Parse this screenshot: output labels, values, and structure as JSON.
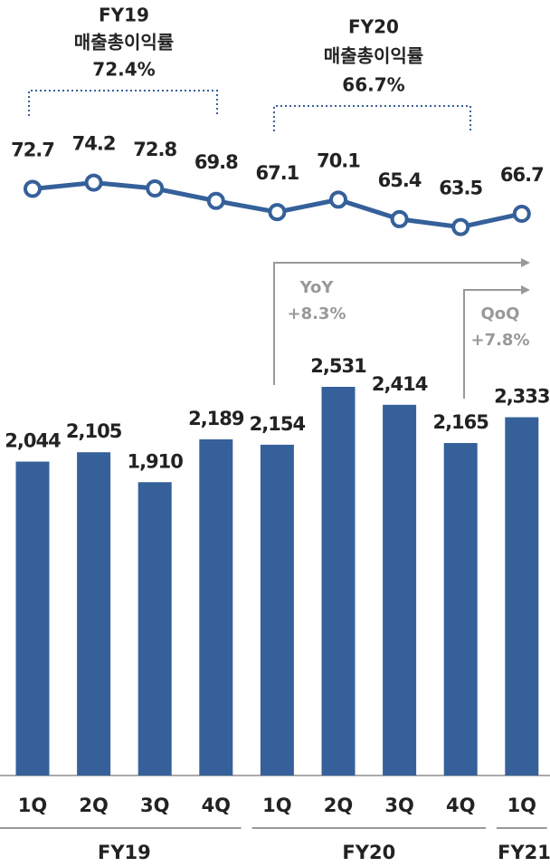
{
  "chart_data": {
    "type": "bar",
    "categories": [
      "1Q",
      "2Q",
      "3Q",
      "4Q",
      "1Q",
      "2Q",
      "3Q",
      "4Q",
      "1Q"
    ],
    "groups": [
      {
        "label": "FY19",
        "count": 4
      },
      {
        "label": "FY20",
        "count": 4
      },
      {
        "label": "FY21",
        "count": 1
      }
    ],
    "series": [
      {
        "type": "bar",
        "color": "#35609a",
        "values": [
          2044,
          2105,
          1910,
          2189,
          2154,
          2531,
          2414,
          2165,
          2333
        ],
        "value_labels": [
          "2,044",
          "2,105",
          "1,910",
          "2,189",
          "2,154",
          "2,531",
          "2,414",
          "2,165",
          "2,333"
        ]
      },
      {
        "type": "line",
        "axis": "y2",
        "color": "#35609a",
        "values": [
          72.7,
          74.2,
          72.8,
          69.8,
          67.1,
          70.1,
          65.4,
          63.5,
          66.7
        ]
      }
    ],
    "ylim": [
      0,
      5000
    ],
    "y2lim": [
      20,
      80
    ],
    "annotations": [
      {
        "lines": [
          "FY19",
          "매출총이익률",
          "72.4%"
        ]
      },
      {
        "lines": [
          "FY20",
          "매출총이익률",
          "66.7%"
        ]
      },
      {
        "lines": [
          "YoY",
          "+8.3%"
        ]
      },
      {
        "lines": [
          "QoQ",
          "+7.8%"
        ]
      }
    ]
  }
}
